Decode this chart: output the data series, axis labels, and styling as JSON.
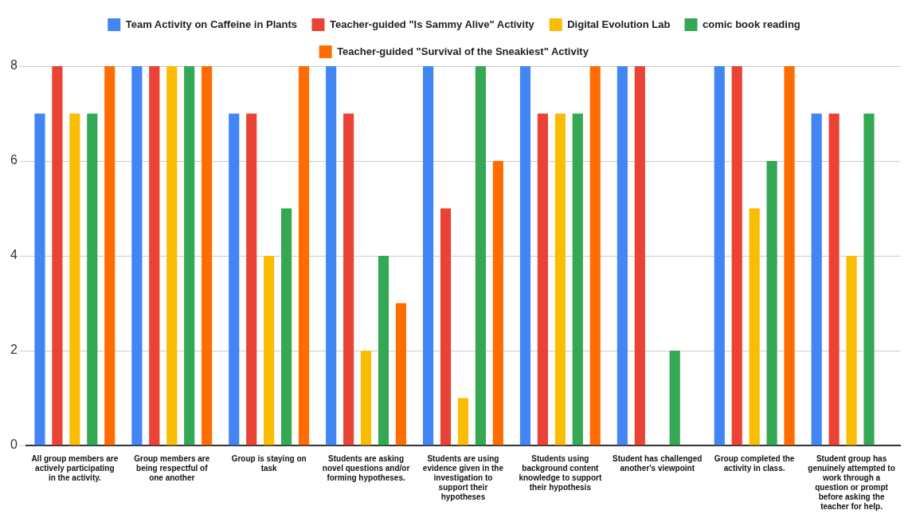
{
  "chart_data": {
    "type": "bar",
    "categories": [
      "All group members are actively participating in the activity.",
      "Group members are being respectful of one another",
      "Group is staying on task",
      "Students are asking novel questions and/or forming hypotheses.",
      "Students are using evidence given in the investigation to support their hypotheses",
      "Students using background content knowledge to support their hypothesis",
      "Student has challenged another's viewpoint",
      "Group completed the activity in class.",
      "Student group has genuinely attempted to work through a question or prompt before asking the teacher for help."
    ],
    "series": [
      {
        "name": "Team Activity on Caffeine in Plants",
        "color": "#4285f4",
        "values": [
          7,
          8,
          7,
          8,
          8,
          8,
          8,
          8,
          7
        ]
      },
      {
        "name": "Teacher-guided \"Is Sammy Alive\" Activity",
        "color": "#ea4335",
        "values": [
          8,
          8,
          7,
          7,
          5,
          7,
          8,
          8,
          7
        ]
      },
      {
        "name": "Digital Evolution Lab",
        "color": "#fbbc04",
        "values": [
          7,
          8,
          4,
          2,
          1,
          7,
          null,
          5,
          4
        ]
      },
      {
        "name": "comic book reading",
        "color": "#34a853",
        "values": [
          7,
          8,
          5,
          4,
          8,
          7,
          2,
          6,
          7
        ]
      },
      {
        "name": "Teacher-guided \"Survival of the Sneakiest\" Activity",
        "color": "#ff6d01",
        "values": [
          8,
          8,
          8,
          3,
          6,
          8,
          null,
          8,
          null
        ]
      }
    ],
    "ylim": [
      0,
      8
    ],
    "yticks": [
      0,
      2,
      4,
      6,
      8
    ],
    "grid": "y",
    "legend": "top"
  }
}
